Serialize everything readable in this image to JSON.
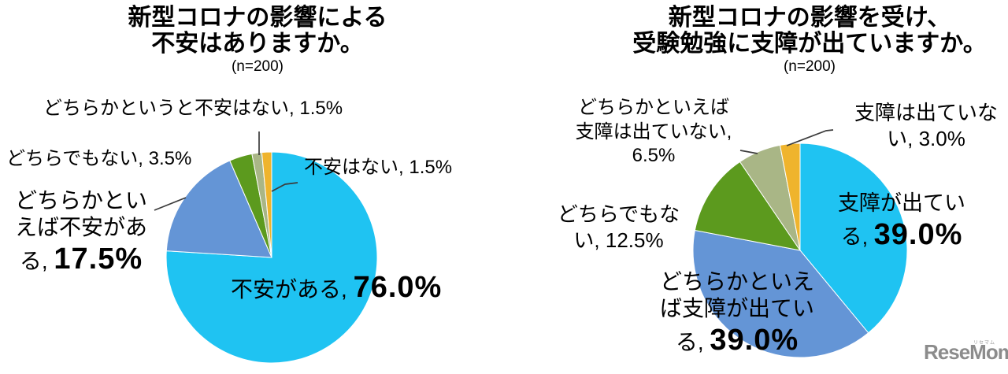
{
  "page": {
    "background": "#ffffff"
  },
  "logo": {
    "text": "ReseMom.",
    "ruby": "リセマム"
  },
  "chart_data": [
    {
      "type": "pie",
      "title": "新型コロナの影響による不安はありますか。",
      "title_lines": [
        "新型コロナの影響による",
        "不安はありますか。"
      ],
      "sample_size_label": "(n=200)",
      "n": 200,
      "legend_position": "none",
      "slices": [
        {
          "label": "不安がある",
          "value": 76.0,
          "color": "#1FC3F2"
        },
        {
          "label": "どちらかといえば不安がある",
          "value": 17.5,
          "color": "#6495D6"
        },
        {
          "label": "どちらでもない",
          "value": 3.5,
          "color": "#5C9A1E"
        },
        {
          "label": "どちらかというと不安はない",
          "value": 1.5,
          "color": "#A9B686"
        },
        {
          "label": "不安はない",
          "value": 1.5,
          "color": "#EFB42D"
        }
      ],
      "callouts": [
        {
          "name": "不安がある, ",
          "value": "76.0%"
        },
        {
          "name": "どちらかといえば不安がある, ",
          "value": "17.5%"
        },
        {
          "name": "どちらでもない, ",
          "value": "3.5%"
        },
        {
          "name": "どちらかというと不安はない, ",
          "value": "1.5%"
        },
        {
          "name": "不安はない, ",
          "value": "1.5%"
        }
      ]
    },
    {
      "type": "pie",
      "title": "新型コロナの影響を受け、受験勉強に支障が出ていますか。",
      "title_lines": [
        "新型コロナの影響を受け、",
        "受験勉強に支障が出ていますか。"
      ],
      "sample_size_label": "(n=200)",
      "n": 200,
      "legend_position": "none",
      "slices": [
        {
          "label": "支障が出ている",
          "value": 39.0,
          "color": "#1FC3F2"
        },
        {
          "label": "どちらかといえば支障が出ている",
          "value": 39.0,
          "color": "#6495D6"
        },
        {
          "label": "どちらでもない",
          "value": 12.5,
          "color": "#5C9A1E"
        },
        {
          "label": "どちらかといえば支障は出ていない",
          "value": 6.5,
          "color": "#A9B686"
        },
        {
          "label": "支障は出ていない",
          "value": 3.0,
          "color": "#EFB42D"
        }
      ],
      "callouts": [
        {
          "name": "支障が出てい る, ",
          "value": "39.0%"
        },
        {
          "name": "どちらかといえば支障が出ている, ",
          "value": "39.0%"
        },
        {
          "name": "どちらでもない, ",
          "value": "12.5%"
        },
        {
          "name": "どちらかといえば支障は出ていない, ",
          "value": "6.5%"
        },
        {
          "name": "支障は出ていない, ",
          "value": "3.0%"
        }
      ]
    }
  ]
}
